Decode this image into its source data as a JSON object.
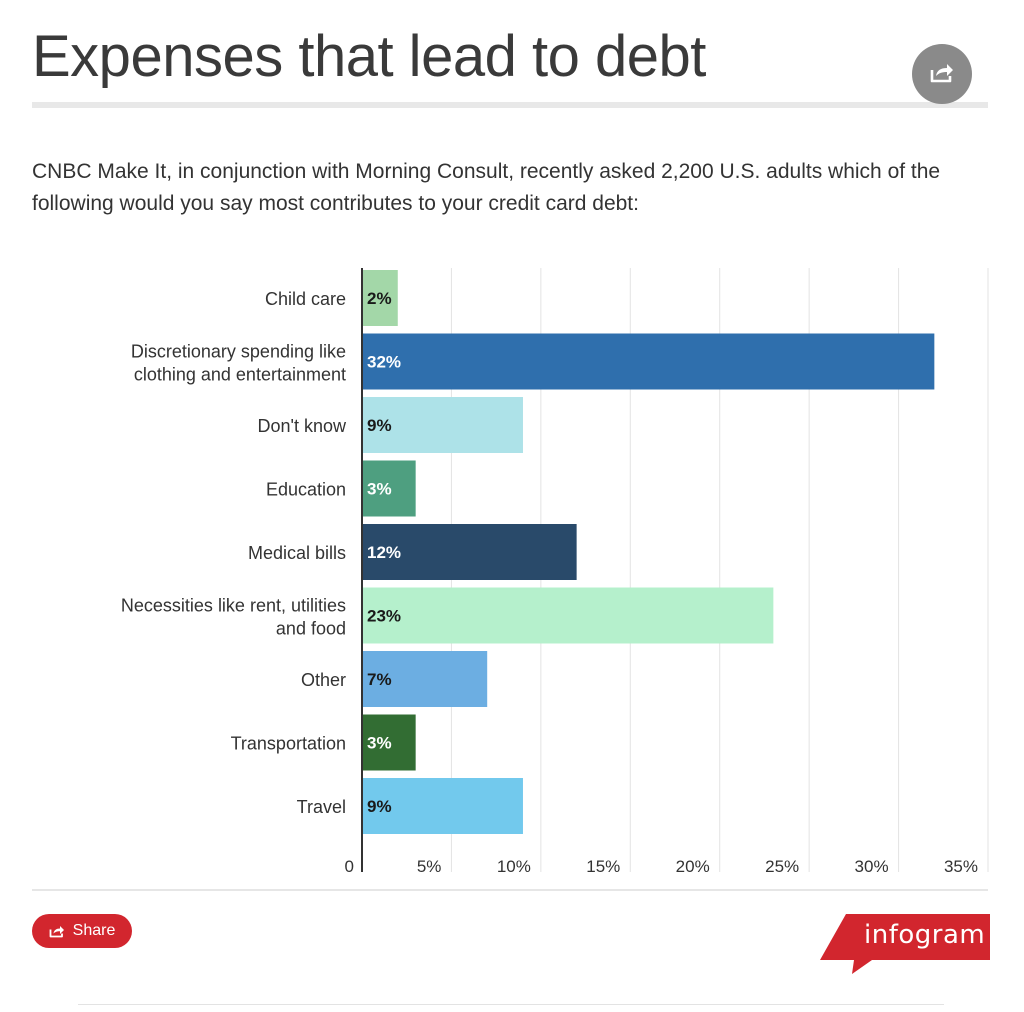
{
  "header": {
    "title": "Expenses that lead to debt",
    "subtitle": "CNBC Make It, in conjunction with Morning Consult, recently asked 2,200 U.S. adults which of the following would you say most contributes to your credit card debt:",
    "share_icon": "share-arrow-icon"
  },
  "footer": {
    "share_label": "Share",
    "share_icon": "share-arrow-icon",
    "brand": "infogram"
  },
  "colors": {
    "accent": "#d2262e",
    "axis": "#333333",
    "grid": "#e3e3e3"
  },
  "chart_data": {
    "type": "bar",
    "orientation": "horizontal",
    "categories": [
      "Child care",
      "Discretionary spending like clothing and entertainment",
      "Don't know",
      "Education",
      "Medical bills",
      "Necessities like rent, utilities and food",
      "Other",
      "Transportation",
      "Travel"
    ],
    "values": [
      2,
      32,
      9,
      3,
      12,
      23,
      7,
      3,
      9
    ],
    "data_labels": [
      "2%",
      "32%",
      "9%",
      "3%",
      "12%",
      "23%",
      "7%",
      "3%",
      "9%"
    ],
    "colors": [
      "#a3d7a8",
      "#2f6fad",
      "#ade2e8",
      "#4e9f80",
      "#294a6a",
      "#b5f0cc",
      "#6caee2",
      "#326d33",
      "#72c9ed"
    ],
    "label_colors": [
      "#1a1a1a",
      "#ffffff",
      "#1a1a1a",
      "#ffffff",
      "#ffffff",
      "#1a1a1a",
      "#1a1a1a",
      "#ffffff",
      "#1a1a1a"
    ],
    "x_ticks": [
      0,
      5,
      10,
      15,
      20,
      25,
      30,
      35
    ],
    "x_tick_labels": [
      "0",
      "5%",
      "10%",
      "15%",
      "20%",
      "25%",
      "30%",
      "35%"
    ],
    "xlim": [
      0,
      35
    ],
    "grid": true,
    "legend": "none",
    "xlabel": "",
    "ylabel": ""
  }
}
